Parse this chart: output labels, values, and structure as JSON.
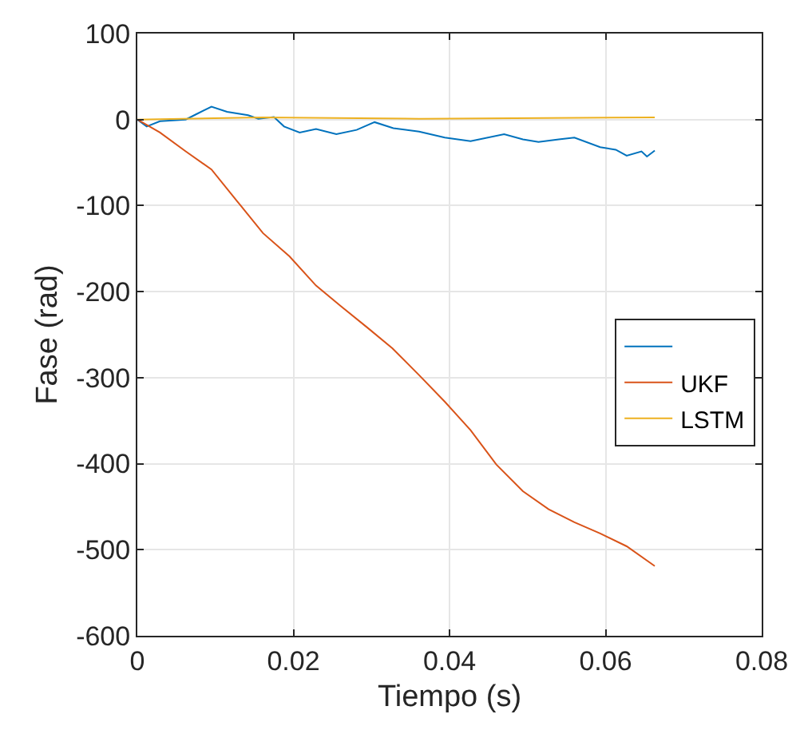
{
  "chart_data": {
    "type": "line",
    "xlabel": "Tiempo (s)",
    "ylabel": "Fase (rad)",
    "xlim": [
      0,
      0.08
    ],
    "xticks": [
      0,
      0.02,
      0.04,
      0.06,
      0.08
    ],
    "ylim": [
      -600,
      100
    ],
    "yticks": [
      -600,
      -500,
      -400,
      -300,
      -200,
      -100,
      0,
      100
    ],
    "grid": true,
    "legend": "right",
    "marker": "none",
    "line_style": "solid",
    "series": [
      {
        "color": "#0072bd",
        "x": [
          0,
          0.0012,
          0.0029,
          0.0062,
          0.0075,
          0.0095,
          0.0115,
          0.0142,
          0.0155,
          0.0175,
          0.0188,
          0.0208,
          0.0229,
          0.0255,
          0.0281,
          0.0304,
          0.0328,
          0.0361,
          0.0394,
          0.0427,
          0.047,
          0.0494,
          0.0514,
          0.054,
          0.056,
          0.0593,
          0.0613,
          0.0627,
          0.0646,
          0.0653,
          0.0663
        ],
        "values": [
          0,
          -8,
          -2,
          0,
          6,
          15,
          9,
          5,
          1,
          3,
          -8,
          -15,
          -11,
          -17,
          -12,
          -3,
          -10,
          -14,
          -21,
          -25,
          -17,
          -23,
          -26,
          -23,
          -21,
          -32,
          -35,
          -42,
          -37,
          -43,
          -36
        ]
      },
      {
        "name": "UKF",
        "color": "#d95319",
        "x": [
          0,
          0.0029,
          0.0062,
          0.0095,
          0.0128,
          0.0161,
          0.0195,
          0.0229,
          0.0261,
          0.0295,
          0.0327,
          0.0361,
          0.0394,
          0.0427,
          0.046,
          0.0494,
          0.0527,
          0.056,
          0.0593,
          0.0627,
          0.0663
        ],
        "values": [
          0,
          -15,
          -37,
          -58,
          -95,
          -132,
          -159,
          -193,
          -217,
          -242,
          -266,
          -297,
          -328,
          -361,
          -401,
          -432,
          -453,
          -468,
          -481,
          -496,
          -519
        ]
      },
      {
        "name": "LSTM",
        "color": "#edb120",
        "x": [
          0,
          0.0161,
          0.0361,
          0.0663
        ],
        "values": [
          0,
          2.5,
          1,
          2.5
        ]
      }
    ]
  }
}
